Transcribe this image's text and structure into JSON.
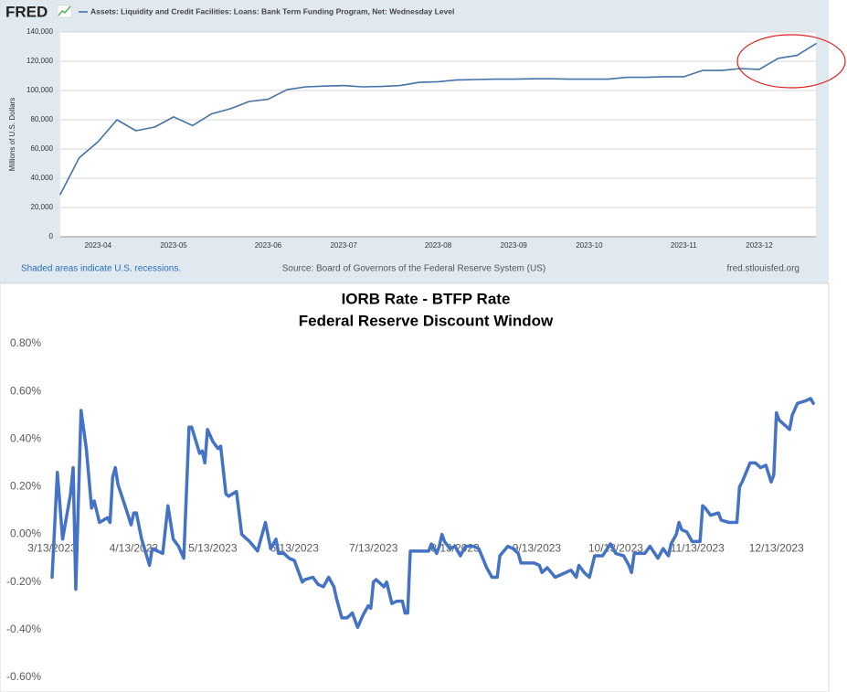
{
  "chart_data": [
    {
      "type": "line",
      "logo": "FRED",
      "ylabel": "Millions of U.S. Dollars",
      "note": "Shaded areas indicate U.S. recessions.",
      "source": "Source: Board of Governors of the Federal Reserve System (US)",
      "url": "fred.stlouisfed.org",
      "categories": [
        null,
        null,
        "2023-04",
        null,
        null,
        null,
        "2023-05",
        null,
        null,
        null,
        null,
        "2023-06",
        null,
        null,
        null,
        "2023-07",
        null,
        null,
        null,
        null,
        "2023-08",
        null,
        null,
        null,
        "2023-09",
        null,
        null,
        null,
        "2023-10",
        null,
        null,
        null,
        null,
        "2023-11",
        null,
        null,
        null,
        "2023-12",
        null,
        null,
        null
      ],
      "series": [
        {
          "name": "Assets: Liquidity and Credit Facilities: Loans: Bank Term Funding Program, Net: Wednesday Level",
          "color": "#4572a7",
          "values": [
            29000,
            54000,
            65000,
            80000,
            72500,
            75000,
            82000,
            76000,
            84000,
            87500,
            92500,
            94000,
            100600,
            102500,
            103000,
            103400,
            102500,
            102800,
            103400,
            105600,
            106000,
            107200,
            107500,
            107800,
            107800,
            108000,
            108000,
            107800,
            107800,
            107800,
            109000,
            109000,
            109400,
            109400,
            113700,
            113700,
            115000,
            114400,
            122000,
            124000,
            132000
          ]
        }
      ],
      "ylim": [
        0,
        140000
      ],
      "yticks": [
        0,
        {
          "value": 20000,
          "label": "20,000"
        },
        {
          "value": 40000,
          "label": "40,000"
        },
        {
          "value": 60000,
          "label": "60,000"
        },
        {
          "value": 80000,
          "label": "80,000"
        },
        {
          "value": 100000,
          "label": "100,000"
        },
        {
          "value": 120000,
          "label": "120,000"
        },
        {
          "value": 140000,
          "label": "140,000"
        }
      ],
      "grid": true
    },
    {
      "type": "line",
      "title": "IORB Rate - BTFP Rate",
      "subtitle": "Federal Reserve Discount Window",
      "x": [
        "2023-03-13",
        "2023-03-15",
        "2023-03-17",
        "2023-03-20",
        "2023-03-21",
        "2023-03-22",
        "2023-03-24",
        "2023-03-26",
        "2023-03-28",
        "2023-03-29",
        "2023-03-31",
        "2023-04-03",
        "2023-04-04",
        "2023-04-05",
        "2023-04-06",
        "2023-04-07",
        "2023-04-10",
        "2023-04-12",
        "2023-04-13",
        "2023-04-14",
        "2023-04-16",
        "2023-04-19",
        "2023-04-20",
        "2023-04-22",
        "2023-04-24",
        "2023-04-26",
        "2023-04-28",
        "2023-04-30",
        "2023-05-02",
        "2023-05-04",
        "2023-05-05",
        "2023-05-08",
        "2023-05-09",
        "2023-05-10",
        "2023-05-11",
        "2023-05-13",
        "2023-05-15",
        "2023-05-16",
        "2023-05-18",
        "2023-05-19",
        "2023-05-22",
        "2023-05-23",
        "2023-05-24",
        "2023-05-27",
        "2023-05-30",
        "2023-05-31",
        "2023-06-02",
        "2023-06-04",
        "2023-06-06",
        "2023-06-07",
        "2023-06-09",
        "2023-06-11",
        "2023-06-13",
        "2023-06-16",
        "2023-06-17",
        "2023-06-20",
        "2023-06-22",
        "2023-06-24",
        "2023-06-26",
        "2023-06-28",
        "2023-06-29",
        "2023-07-01",
        "2023-07-03",
        "2023-07-05",
        "2023-07-07",
        "2023-07-09",
        "2023-07-11",
        "2023-07-12",
        "2023-07-13",
        "2023-07-14",
        "2023-07-17",
        "2023-07-18",
        "2023-07-20",
        "2023-07-22",
        "2023-07-24",
        "2023-07-25",
        "2023-07-26",
        "2023-07-27",
        "2023-07-29",
        "2023-08-01",
        "2023-08-03",
        "2023-08-04",
        "2023-08-06",
        "2023-08-07",
        "2023-08-08",
        "2023-08-09",
        "2023-08-11",
        "2023-08-13",
        "2023-08-15",
        "2023-08-17",
        "2023-08-20",
        "2023-08-22",
        "2023-08-25",
        "2023-08-27",
        "2023-08-29",
        "2023-08-30",
        "2023-09-02",
        "2023-09-04",
        "2023-09-06",
        "2023-09-07",
        "2023-09-10",
        "2023-09-12",
        "2023-09-14",
        "2023-09-15",
        "2023-09-17",
        "2023-09-20",
        "2023-09-22",
        "2023-09-24",
        "2023-09-26",
        "2023-09-28",
        "2023-09-29",
        "2023-10-01",
        "2023-10-03",
        "2023-10-05",
        "2023-10-08",
        "2023-10-11",
        "2023-10-13",
        "2023-10-16",
        "2023-10-18",
        "2023-10-19",
        "2023-10-20",
        "2023-10-24",
        "2023-10-26",
        "2023-10-29",
        "2023-10-31",
        "2023-11-02",
        "2023-11-03",
        "2023-11-05",
        "2023-11-06",
        "2023-11-07",
        "2023-11-09",
        "2023-11-11",
        "2023-11-14",
        "2023-11-15",
        "2023-11-16",
        "2023-11-18",
        "2023-11-21",
        "2023-11-22",
        "2023-11-25",
        "2023-11-28",
        "2023-11-29",
        "2023-11-30",
        "2023-12-03",
        "2023-12-05",
        "2023-12-07",
        "2023-12-09",
        "2023-12-11",
        "2023-12-12",
        "2023-12-13",
        "2023-12-14",
        "2023-12-18",
        "2023-12-19",
        "2023-12-21",
        "2023-12-24",
        "2023-12-26",
        "2023-12-27"
      ],
      "series": [
        {
          "color": "#4472c4",
          "values": [
            -0.18,
            0.26,
            -0.02,
            0.17,
            0.28,
            -0.23,
            0.52,
            0.36,
            0.11,
            0.14,
            0.05,
            0.07,
            0.05,
            0.24,
            0.28,
            0.21,
            0.11,
            0.04,
            0.09,
            0.09,
            -0.02,
            -0.13,
            -0.06,
            -0.07,
            -0.08,
            0.12,
            -0.02,
            -0.05,
            -0.1,
            0.45,
            0.45,
            0.34,
            0.35,
            0.3,
            0.44,
            0.39,
            0.36,
            0.37,
            0.17,
            0.16,
            0.18,
            0.09,
            0.0,
            -0.03,
            -0.07,
            -0.03,
            0.05,
            -0.06,
            -0.02,
            -0.08,
            -0.08,
            -0.1,
            -0.11,
            -0.2,
            -0.19,
            -0.18,
            -0.21,
            -0.22,
            -0.18,
            -0.22,
            -0.27,
            -0.35,
            -0.35,
            -0.33,
            -0.39,
            -0.34,
            -0.3,
            -0.31,
            -0.2,
            -0.19,
            -0.22,
            -0.2,
            -0.29,
            -0.28,
            -0.28,
            -0.33,
            -0.33,
            -0.07,
            -0.07,
            -0.07,
            -0.07,
            -0.04,
            -0.08,
            -0.05,
            0.0,
            -0.03,
            -0.06,
            -0.05,
            -0.09,
            -0.05,
            -0.05,
            -0.06,
            -0.14,
            -0.18,
            -0.18,
            -0.09,
            -0.05,
            -0.06,
            -0.08,
            -0.12,
            -0.12,
            -0.12,
            -0.13,
            -0.16,
            -0.14,
            -0.18,
            -0.17,
            -0.16,
            -0.15,
            -0.18,
            -0.13,
            -0.16,
            -0.18,
            -0.09,
            -0.09,
            -0.04,
            -0.08,
            -0.09,
            -0.13,
            -0.16,
            -0.08,
            -0.08,
            -0.05,
            -0.1,
            -0.06,
            -0.09,
            -0.04,
            0.0,
            0.05,
            0.02,
            0.01,
            -0.03,
            -0.03,
            0.12,
            0.11,
            0.08,
            0.09,
            0.06,
            0.05,
            0.05,
            0.2,
            0.22,
            0.3,
            0.3,
            0.28,
            0.29,
            0.22,
            0.25,
            0.51,
            0.48,
            0.44,
            0.5,
            0.55,
            0.56,
            0.57,
            0.55
          ]
        }
      ],
      "xlim": [
        "2023-03-13",
        "2023-12-28"
      ],
      "xticks": [
        {
          "value": "2023-03-13",
          "label": "3/13/2023"
        },
        {
          "value": "2023-04-13",
          "label": "4/13/2023"
        },
        {
          "value": "2023-05-13",
          "label": "5/13/2023"
        },
        {
          "value": "2023-06-13",
          "label": "6/13/2023"
        },
        {
          "value": "2023-07-13",
          "label": "7/13/2023"
        },
        {
          "value": "2023-08-13",
          "label": "8/13/2023"
        },
        {
          "value": "2023-09-13",
          "label": "9/13/2023"
        },
        {
          "value": "2023-10-13",
          "label": "10/13/2023"
        },
        {
          "value": "2023-11-13",
          "label": "11/13/2023"
        },
        {
          "value": "2023-12-13",
          "label": "12/13/2023"
        }
      ],
      "ylim": [
        -0.6,
        0.8
      ],
      "yticks": [
        {
          "value": -0.6,
          "label": "-0.60%"
        },
        {
          "value": -0.4,
          "label": "-0.40%"
        },
        {
          "value": -0.2,
          "label": "-0.20%"
        },
        {
          "value": 0,
          "label": "0.00%"
        },
        {
          "value": 0.2,
          "label": "0.20%"
        },
        {
          "value": 0.4,
          "label": "0.40%"
        },
        {
          "value": 0.6,
          "label": "0.60%"
        },
        {
          "value": 0.8,
          "label": "0.80%"
        }
      ],
      "grid": false
    }
  ]
}
